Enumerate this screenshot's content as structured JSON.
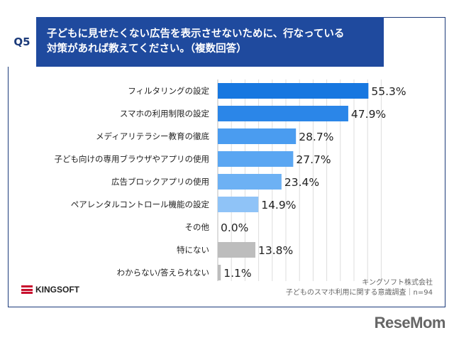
{
  "question": {
    "number": "Q5",
    "text_line1": "子どもに見せたくない広告を表示させないために、行なっている",
    "text_line2": "対策があれば教えてください。（複数回答）"
  },
  "chart_data": {
    "type": "bar",
    "orientation": "horizontal",
    "categories": [
      "フィルタリングの設定",
      "スマホの利用制限の設定",
      "メディアリテラシー教育の徹底",
      "子ども向けの専用ブラウザやアプリの使用",
      "広告ブロックアプリの使用",
      "ペアレンタルコントロール機能の設定",
      "その他",
      "特にない",
      "わからない/答えられない"
    ],
    "values": [
      55.3,
      47.9,
      28.7,
      27.7,
      23.4,
      14.9,
      0.0,
      13.8,
      1.1
    ],
    "value_labels": [
      "55.3%",
      "47.9%",
      "28.7%",
      "27.7%",
      "23.4%",
      "14.9%",
      "0.0%",
      "13.8%",
      "1.1%"
    ],
    "colors": [
      "#1777e0",
      "#2b86e8",
      "#4a9cf0",
      "#5aa6f2",
      "#6db1f4",
      "#8fc3f7",
      "#bdbdbd",
      "#bdbdbd",
      "#bdbdbd"
    ],
    "xlim": [
      0,
      60
    ],
    "grid": true
  },
  "footer": {
    "brand": "KINGSOFT",
    "source_line1": "キングソフト株式会社",
    "source_line2": "子どものスマホ利用に関する意識調査｜n=94"
  },
  "watermark": "ReseMom"
}
